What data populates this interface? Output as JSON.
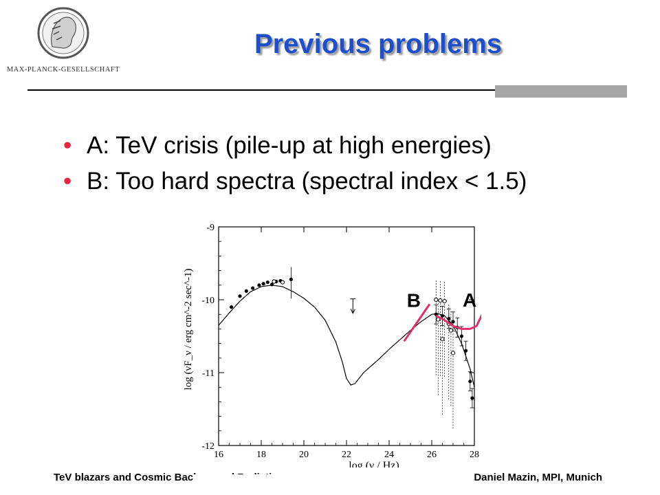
{
  "logo": {
    "text": "MAX-PLANCK-GESELLSCHAFT"
  },
  "title": "Previous problems",
  "bullets": [
    "A: TeV crisis (pile-up at high energies)",
    "B: Too hard spectra (spectral index < 1.5)"
  ],
  "chart_data": {
    "type": "scatter",
    "xlabel": "log (ν / Hz)",
    "ylabel": "log (νF_ν / erg cm^-2 sec^-1)",
    "xlim": [
      16,
      28
    ],
    "ylim": [
      -12,
      -9
    ],
    "x_ticks": [
      "16",
      "18",
      "20",
      "22",
      "24",
      "26",
      "28"
    ],
    "y_ticks": [
      "-9",
      "-10",
      "-11",
      "-12"
    ],
    "model_curve": {
      "x": [
        16.0,
        16.5,
        17.0,
        17.5,
        18.0,
        18.5,
        19.0,
        19.5,
        20.0,
        20.5,
        21.0,
        21.5,
        21.8,
        22.0,
        22.2,
        22.4,
        22.8,
        23.5,
        24.0,
        24.5,
        25.0,
        25.5,
        26.0,
        26.3,
        26.6,
        27.0,
        27.4,
        27.8,
        28.0
      ],
      "y": [
        -10.35,
        -10.18,
        -10.02,
        -9.89,
        -9.82,
        -9.8,
        -9.82,
        -9.89,
        -9.98,
        -10.1,
        -10.28,
        -10.58,
        -10.85,
        -11.08,
        -11.17,
        -11.15,
        -11.0,
        -10.82,
        -10.68,
        -10.55,
        -10.42,
        -10.3,
        -10.2,
        -10.19,
        -10.22,
        -10.35,
        -10.6,
        -10.95,
        -11.2
      ]
    },
    "filled_points": {
      "x": [
        16.6,
        17.0,
        17.3,
        17.6,
        17.9,
        18.1,
        18.3,
        18.5,
        18.7,
        18.9,
        19.4,
        26.2,
        26.5,
        26.8,
        27.0,
        27.2,
        27.4,
        27.6,
        27.8,
        27.9
      ],
      "y": [
        -10.1,
        -9.95,
        -9.88,
        -9.84,
        -9.8,
        -9.78,
        -9.76,
        -9.79,
        -9.75,
        -9.74,
        -9.72,
        -10.2,
        -10.22,
        -10.26,
        -10.3,
        -10.38,
        -10.5,
        -10.7,
        -11.12,
        -11.35
      ]
    },
    "open_points": {
      "x": [
        18.6,
        19.0,
        26.2,
        26.4,
        26.6,
        26.8,
        26.9,
        27.0,
        26.3,
        26.5
      ],
      "y": [
        -9.75,
        -9.76,
        -10.0,
        -10.01,
        -10.02,
        -10.33,
        -10.42,
        -10.73,
        -10.27,
        -10.54
      ]
    },
    "upper_limit": {
      "x": 22.3,
      "y": -10.12
    },
    "annotations": [
      {
        "label": "B",
        "color": "#e0306a",
        "line": {
          "x": [
            24.7,
            25.9
          ],
          "y": [
            -10.57,
            -10.06
          ]
        }
      },
      {
        "label": "A",
        "color": "#e0306a",
        "curve": {
          "x": [
            26.2,
            26.6,
            27.0,
            27.4,
            27.8,
            28.1,
            28.4
          ],
          "y": [
            -10.22,
            -10.28,
            -10.36,
            -10.4,
            -10.4,
            -10.36,
            -10.18
          ]
        }
      }
    ]
  },
  "footer": {
    "left": "TeV blazars and Cosmic Background Radiation",
    "right": "Daniel Mazin, MPI, Munich"
  }
}
